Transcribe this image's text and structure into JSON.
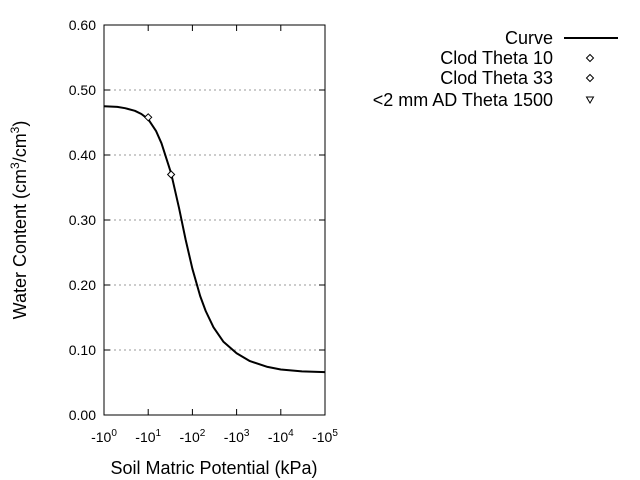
{
  "chart_data": {
    "type": "line",
    "title": "",
    "xlabel": "Soil Matric Potential (kPa)",
    "ylabel_parts": [
      "Water Content (cm",
      "3",
      "/cm",
      "3",
      ")"
    ],
    "x_scale": "log (negative potential)",
    "xlim_log10": [
      0,
      5
    ],
    "ylim": [
      0,
      0.6
    ],
    "x_ticks": [
      {
        "base": "-10",
        "exp": "0"
      },
      {
        "base": "-10",
        "exp": "1"
      },
      {
        "base": "-10",
        "exp": "2"
      },
      {
        "base": "-10",
        "exp": "3"
      },
      {
        "base": "-10",
        "exp": "4"
      },
      {
        "base": "-10",
        "exp": "5"
      }
    ],
    "y_ticks": [
      "0.00",
      "0.10",
      "0.20",
      "0.30",
      "0.40",
      "0.50",
      "0.60"
    ],
    "y_tick_values": [
      0,
      0.1,
      0.2,
      0.3,
      0.4,
      0.5,
      0.6
    ],
    "grid": "horizontal dotted",
    "legend_position": "top-right",
    "series": [
      {
        "name": "Curve",
        "kind": "line",
        "x": [
          1,
          2,
          3,
          5,
          7,
          10,
          15,
          20,
          33,
          50,
          70,
          100,
          150,
          200,
          300,
          500,
          1000,
          2000,
          5000,
          10000,
          30000,
          100000
        ],
        "y": [
          0.475,
          0.474,
          0.472,
          0.468,
          0.463,
          0.455,
          0.437,
          0.418,
          0.372,
          0.318,
          0.27,
          0.225,
          0.183,
          0.16,
          0.135,
          0.113,
          0.095,
          0.083,
          0.074,
          0.07,
          0.067,
          0.066
        ]
      },
      {
        "name": "Clod Theta 10",
        "kind": "diamond",
        "x": [
          10
        ],
        "y": [
          0.458
        ]
      },
      {
        "name": "Clod Theta 33",
        "kind": "diamond",
        "x": [
          33
        ],
        "y": [
          0.37
        ]
      },
      {
        "name": "<2 mm AD Theta 1500",
        "kind": "triangle-down",
        "x": [],
        "y": []
      }
    ]
  }
}
